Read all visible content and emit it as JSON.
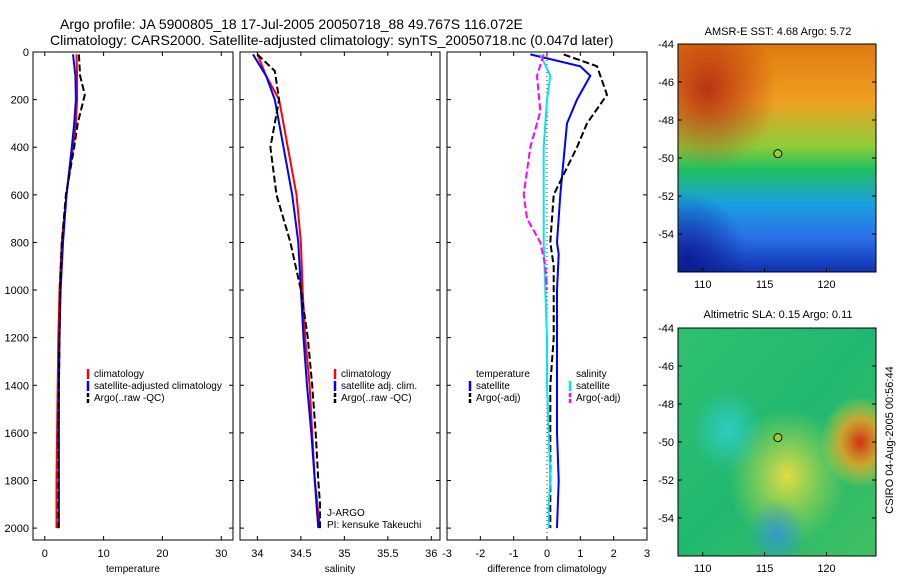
{
  "title_line1": "Argo profile: JA 5900805_18 17-Jul-2005 20050718_88 49.767S 116.072E",
  "title_line2": "Climatology: CARS2000. Satellite-adjusted climatology: synTS_20050718.nc (0.047d later)",
  "side_stamp": "CSIRO 04-Aug-2005 00:56:44",
  "colors": {
    "climatology": "#ff0000",
    "satellite": "#0000ff",
    "argo": "#000000",
    "sal_sat": "#00e5ee",
    "sal_argo": "#ff00ff"
  },
  "chart_data": [
    {
      "type": "line",
      "xlabel": "temperature",
      "xlim": [
        -2,
        32
      ],
      "ylim": [
        2050,
        0
      ],
      "xticks": [
        "0",
        "10",
        "20",
        "30"
      ],
      "yticks": [
        "0",
        "200",
        "400",
        "600",
        "800",
        "1000",
        "1200",
        "1400",
        "1600",
        "1800",
        "2000"
      ],
      "legend": [
        "climatology",
        "satellite-adjusted climatology",
        "Argo(..raw -QC)"
      ],
      "series": [
        {
          "name": "climatology",
          "color": "#ff0000",
          "dash": "solid",
          "x": [
            5.4,
            5.5,
            5.5,
            5.3,
            4.8,
            3.7,
            2.9,
            2.5,
            2.3,
            2.2,
            2.1,
            2.0,
            2.0
          ],
          "y": [
            10,
            100,
            200,
            300,
            400,
            600,
            800,
            1000,
            1200,
            1400,
            1600,
            1800,
            2000
          ]
        },
        {
          "name": "satellite-adjusted climatology",
          "color": "#0000ff",
          "dash": "solid",
          "x": [
            4.8,
            5.2,
            5.3,
            5.0,
            4.6,
            3.7,
            3.1,
            2.7,
            2.5,
            2.4,
            2.4,
            2.4,
            2.4
          ],
          "y": [
            10,
            100,
            200,
            300,
            400,
            600,
            800,
            1000,
            1200,
            1400,
            1600,
            1800,
            2000
          ]
        },
        {
          "name": "Argo(..raw -QC)",
          "color": "#000000",
          "dash": "dashed",
          "x": [
            5.8,
            6.0,
            6.8,
            5.6,
            5.0,
            3.6,
            2.9,
            2.6,
            2.5,
            2.4,
            2.3,
            2.3,
            2.3
          ],
          "y": [
            10,
            100,
            180,
            300,
            400,
            600,
            800,
            1000,
            1200,
            1400,
            1600,
            1800,
            2000
          ]
        }
      ]
    },
    {
      "type": "line",
      "xlabel": "salinity",
      "xlim": [
        33.8,
        36.1
      ],
      "ylim": [
        2050,
        0
      ],
      "xticks": [
        "34",
        "34.5",
        "35",
        "35.5",
        "36"
      ],
      "legend": [
        "climatology",
        "satellite adj. clim.",
        "Argo(..raw -QC)"
      ],
      "annotation": [
        "J-ARGO",
        "PI: kensuke Takeuchi"
      ],
      "series": [
        {
          "name": "climatology",
          "color": "#ff0000",
          "dash": "solid",
          "x": [
            34.0,
            34.1,
            34.25,
            34.35,
            34.45,
            34.5,
            34.52,
            34.55,
            34.6,
            34.63,
            34.66,
            34.69,
            34.72
          ],
          "y": [
            10,
            100,
            200,
            400,
            600,
            800,
            1000,
            1200,
            1400,
            1600,
            1800,
            1900,
            2000
          ]
        },
        {
          "name": "satellite adj. clim.",
          "color": "#0000ff",
          "dash": "solid",
          "x": [
            33.95,
            34.1,
            34.2,
            34.3,
            34.4,
            34.47,
            34.5,
            34.53,
            34.57,
            34.62,
            34.66,
            34.68,
            34.7
          ],
          "y": [
            10,
            100,
            200,
            400,
            600,
            800,
            1000,
            1200,
            1400,
            1600,
            1800,
            1900,
            2000
          ]
        },
        {
          "name": "Argo(..raw -QC)",
          "color": "#000000",
          "dash": "dashed",
          "x": [
            34.0,
            34.2,
            34.25,
            34.15,
            34.22,
            34.38,
            34.5,
            34.58,
            34.63,
            34.67,
            34.7,
            34.72,
            34.72
          ],
          "y": [
            10,
            80,
            200,
            400,
            600,
            800,
            1000,
            1200,
            1400,
            1600,
            1800,
            1900,
            2000
          ]
        }
      ]
    },
    {
      "type": "line",
      "xlabel": "difference from climatology",
      "xlim": [
        -3,
        3
      ],
      "ylim": [
        2050,
        0
      ],
      "xticks": [
        "-3",
        "-2",
        "-1",
        "0",
        "1",
        "2",
        "3"
      ],
      "legend": [
        "temperature",
        "satellite",
        "Argo(-adj)",
        "salinity",
        "satellite",
        "Argo(-adj)"
      ],
      "series": [
        {
          "name": "satellite",
          "color": "#0000ff",
          "dash": "solid",
          "x": [
            -0.5,
            1.0,
            1.3,
            0.9,
            0.6,
            0.4,
            0.3,
            0.35,
            0.3,
            0.3,
            0.3,
            0.3,
            0.35,
            0.3
          ],
          "y": [
            10,
            60,
            100,
            200,
            300,
            600,
            800,
            850,
            1000,
            1200,
            1400,
            1600,
            1800,
            2000
          ]
        },
        {
          "name": "Argo(-adj)",
          "color": "#000000",
          "dash": "dashed",
          "x": [
            0.5,
            1.5,
            1.8,
            1.2,
            0.9,
            0.2,
            0.1,
            0.2,
            0.2,
            0.2,
            0.1,
            0.1,
            0.1,
            0.1
          ],
          "y": [
            10,
            60,
            180,
            300,
            400,
            600,
            800,
            900,
            1000,
            1200,
            1400,
            1600,
            1800,
            2000
          ]
        },
        {
          "name": "satellite",
          "color": "#00e5ee",
          "dash": "solid",
          "x": [
            -0.2,
            0.1,
            0.0,
            -0.1,
            -0.1,
            -0.1,
            -0.05,
            0.0,
            0.0,
            0.05,
            0.1,
            0.05,
            0.05
          ],
          "y": [
            10,
            100,
            200,
            400,
            600,
            800,
            1000,
            1200,
            1400,
            1600,
            1800,
            1900,
            2000
          ]
        },
        {
          "name": "Argo(-adj)",
          "color": "#ff00ff",
          "dash": "dashed",
          "x": [
            -0.1,
            -0.3,
            -0.2,
            -0.5,
            -0.7,
            -0.6,
            -0.2,
            -0.05,
            0.0
          ],
          "y": [
            10,
            100,
            250,
            400,
            600,
            700,
            800,
            900,
            1000
          ]
        }
      ]
    },
    {
      "type": "heatmap",
      "title": "AMSR-E SST: 4.68 Argo: 5.72",
      "xticks": [
        "110",
        "115",
        "120"
      ],
      "yticks": [
        "-44",
        "-46",
        "-48",
        "-50",
        "-52",
        "-54"
      ],
      "xlim": [
        108,
        124
      ],
      "ylim": [
        -56,
        -44
      ],
      "marker": {
        "lon": 116.07,
        "lat": -49.77
      }
    },
    {
      "type": "heatmap",
      "title": "Altimetric SLA: 0.15 Argo: 0.11",
      "xticks": [
        "110",
        "115",
        "120"
      ],
      "yticks": [
        "-44",
        "-46",
        "-48",
        "-50",
        "-52",
        "-54"
      ],
      "xlim": [
        108,
        124
      ],
      "ylim": [
        -56,
        -44
      ],
      "marker": {
        "lon": 116.07,
        "lat": -49.77
      }
    }
  ]
}
